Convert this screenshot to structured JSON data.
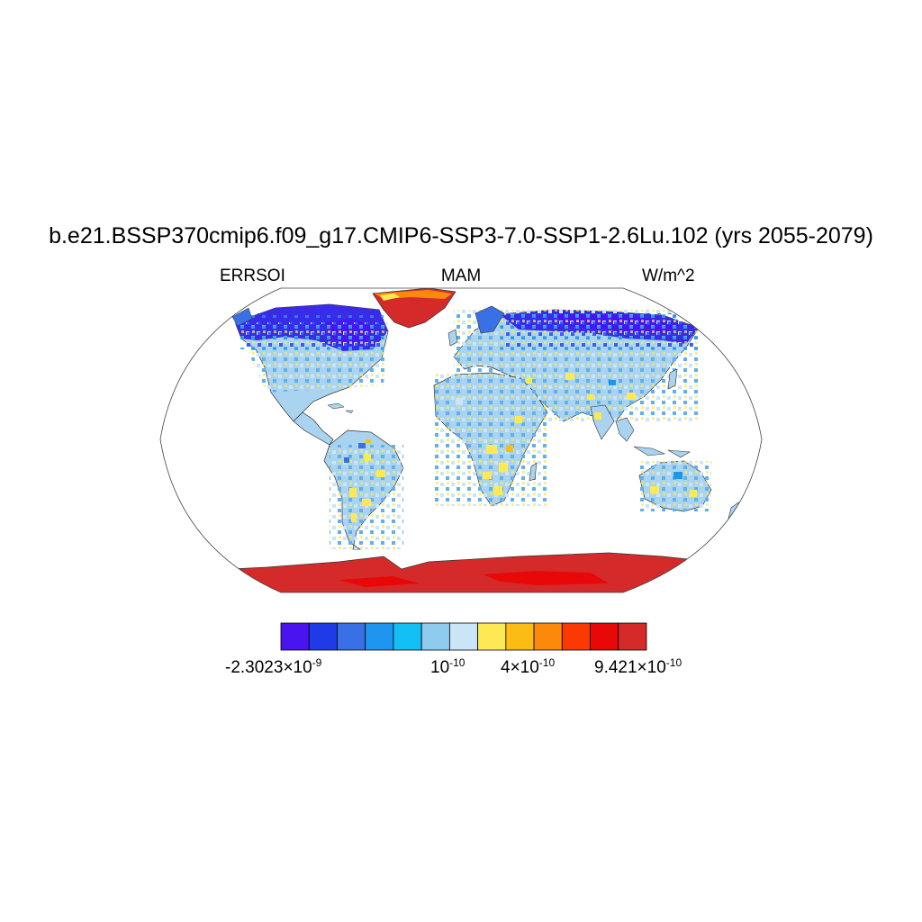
{
  "title": "b.e21.BSSP370cmip6.f09_g17.CMIP6-SSP3-7.0-SSP1-2.6Lu.102 (yrs 2055-2079)",
  "left_label": "ERRSOI",
  "center_label": "MAM",
  "right_label": "W/m^2",
  "colorbar": {
    "colors": [
      "#4a14f0",
      "#1f3be8",
      "#3a70e6",
      "#1e96f0",
      "#12c0f5",
      "#8ecbee",
      "#c9e5f7",
      "#fde953",
      "#fbbd13",
      "#fb8a0b",
      "#fb3a03",
      "#e80808",
      "#d42a2a"
    ],
    "labels": [
      {
        "base": "-2.3023×10",
        "exp": "-9"
      },
      {
        "base": "10",
        "exp": "-10"
      },
      {
        "base": "4×10",
        "exp": "-10"
      },
      {
        "base": "9.421×10",
        "exp": "-10"
      }
    ]
  },
  "map": {
    "projection": "Robinson",
    "colors": {
      "ocean": "#ffffff",
      "land_base": "#a9d3ef",
      "land_light": "#c9e5f7",
      "land_mid": "#1e96f0",
      "high_lat_north": "#3a2be8",
      "positive": "#fde953",
      "positive_strong": "#fbbd13",
      "polar": "#d42a2a",
      "polar_strong": "#e80808"
    }
  }
}
